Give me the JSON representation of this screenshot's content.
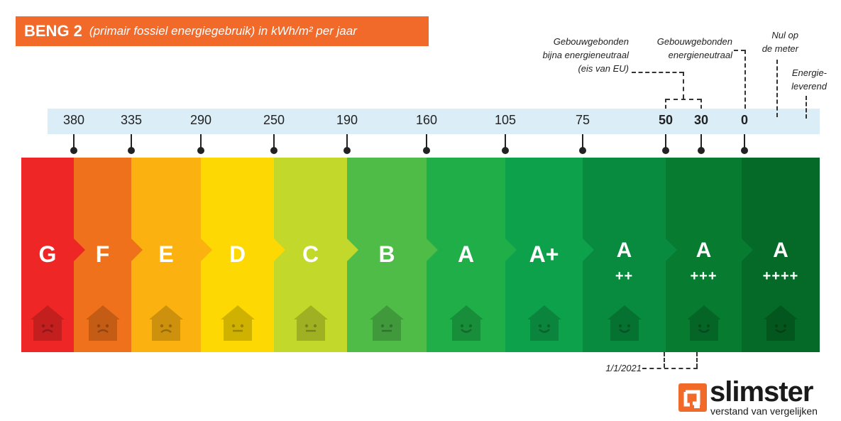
{
  "title": {
    "main": "BENG 2",
    "sub": "(primair fossiel energiegebruik) in kWh/m² per jaar"
  },
  "colors": {
    "title_bg": "#f26a2a",
    "scale_band": "#dbeef8"
  },
  "chart_data": {
    "type": "table",
    "title": "BENG 2 (primair fossiel energiegebruik) in kWh/m² per jaar",
    "scale_unit": "kWh/m² per jaar",
    "grid": false,
    "ticks": [
      {
        "label": "380",
        "value": 380,
        "bold": false
      },
      {
        "label": "335",
        "value": 335,
        "bold": false
      },
      {
        "label": "290",
        "value": 290,
        "bold": false
      },
      {
        "label": "250",
        "value": 250,
        "bold": false
      },
      {
        "label": "190",
        "value": 190,
        "bold": false
      },
      {
        "label": "160",
        "value": 160,
        "bold": false
      },
      {
        "label": "105",
        "value": 105,
        "bold": false
      },
      {
        "label": "75",
        "value": 75,
        "bold": false
      },
      {
        "label": "50",
        "value": 50,
        "bold": true
      },
      {
        "label": "30",
        "value": 30,
        "bold": true
      },
      {
        "label": "0",
        "value": 0,
        "bold": true
      }
    ],
    "labels": [
      {
        "letter": "G",
        "plus": "",
        "color": "#ee2726",
        "mood": "sad"
      },
      {
        "letter": "F",
        "plus": "",
        "color": "#f0711c",
        "mood": "sad"
      },
      {
        "letter": "E",
        "plus": "",
        "color": "#fbb110",
        "mood": "sad"
      },
      {
        "letter": "D",
        "plus": "",
        "color": "#fdd802",
        "mood": "neutral"
      },
      {
        "letter": "C",
        "plus": "",
        "color": "#c2d82a",
        "mood": "neutral"
      },
      {
        "letter": "B",
        "plus": "",
        "color": "#4fbc48",
        "mood": "neutral"
      },
      {
        "letter": "A",
        "plus": "",
        "color": "#1fae47",
        "mood": "happy"
      },
      {
        "letter": "A+",
        "plus": "",
        "color": "#0ea14b",
        "mood": "happy"
      },
      {
        "letter": "A",
        "plus": "++",
        "color": "#088b3e",
        "mood": "happy"
      },
      {
        "letter": "A",
        "plus": "+++",
        "color": "#077c30",
        "mood": "happy"
      },
      {
        "letter": "A",
        "plus": "++++",
        "color": "#056a27",
        "mood": "happy"
      }
    ],
    "annotations": {
      "bijna": "Gebouwgebonden\nbijna energieneutraal\n(eis van EU)",
      "neutraal": "Gebouwgebonden\nenergieneutraal",
      "nul": "Nul op\nde meter",
      "leverend": "Energie-\nleverend",
      "date": "1/1/2021"
    }
  },
  "logo": {
    "word": "slimster",
    "tagline": "verstand van vergelijken",
    "color": "#f26a2a"
  }
}
